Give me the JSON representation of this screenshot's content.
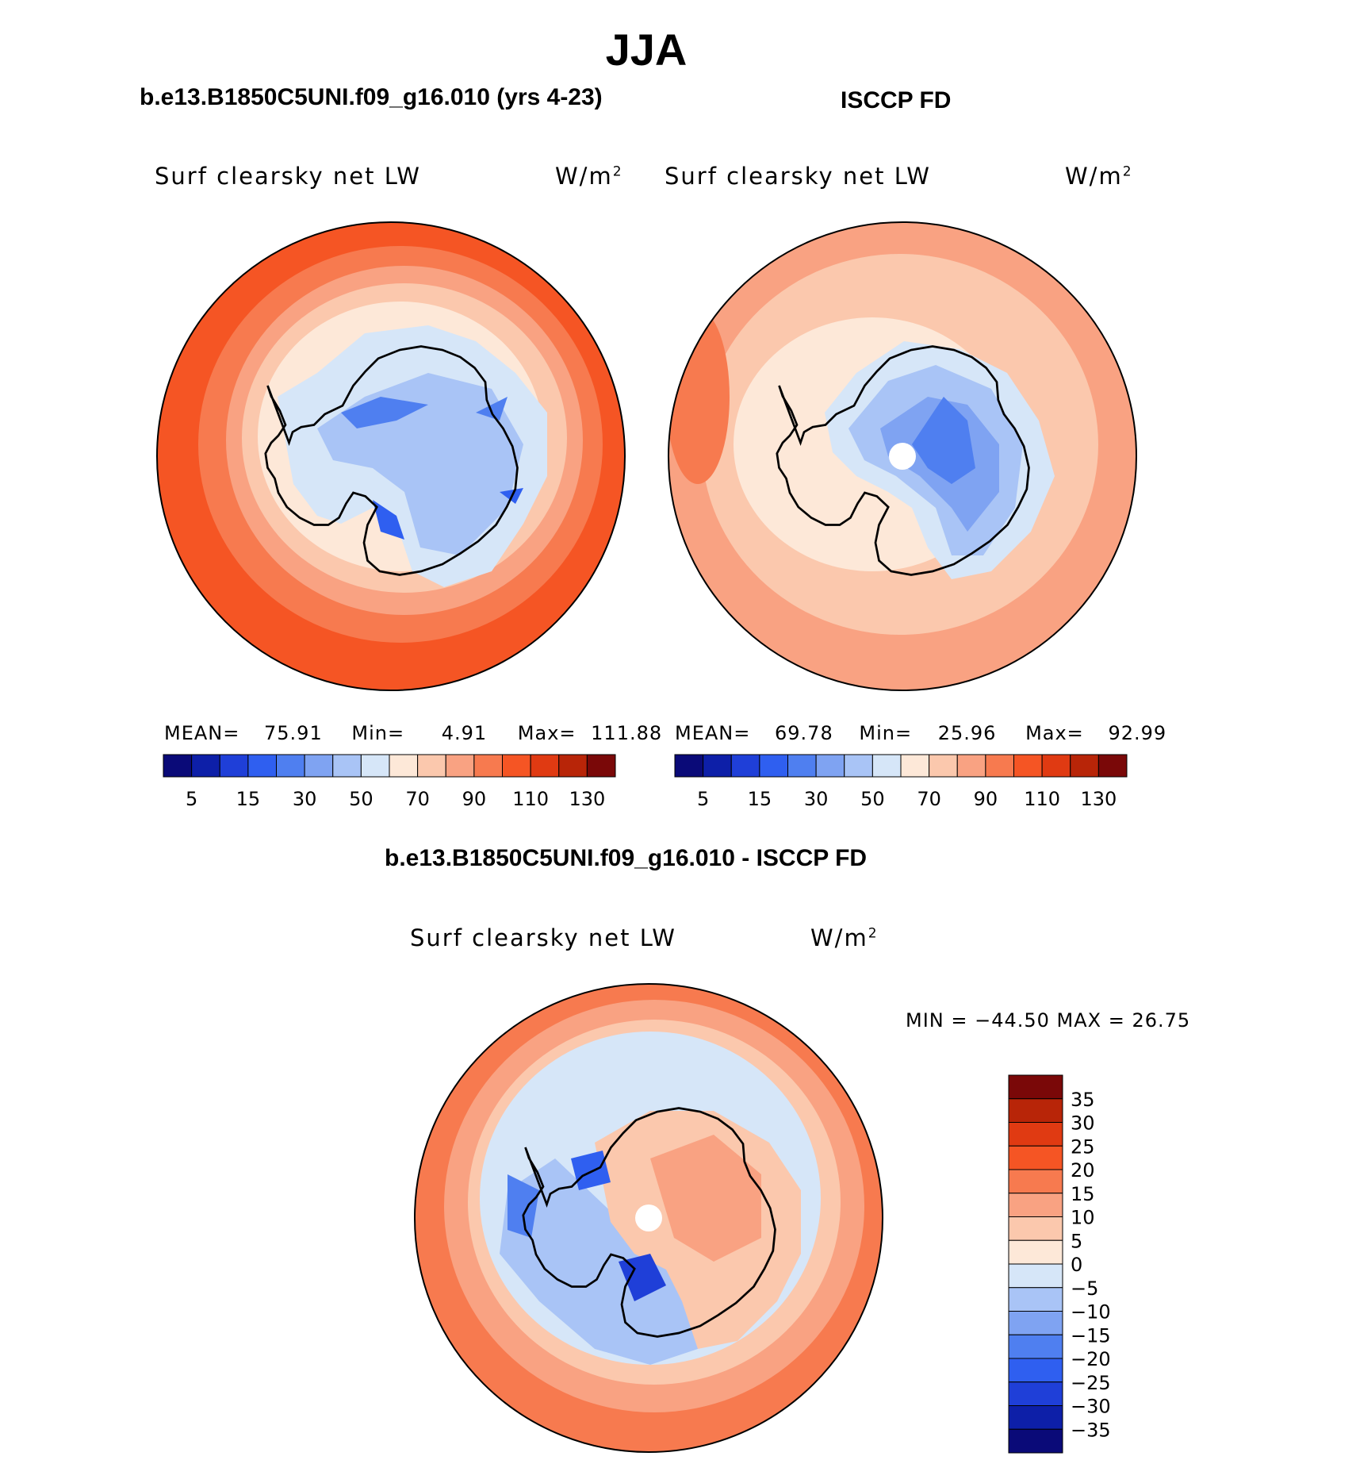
{
  "title": "JJA",
  "panels": [
    {
      "header": "b.e13.B1850C5UNI.f09_g16.010 (yrs 4-23)",
      "variable": "Surf clearsky net LW",
      "units": "W/m",
      "units_sup": "2",
      "stats": {
        "mean_label": "MEAN=",
        "mean": "75.91",
        "min_label": "Min=",
        "min": "4.91",
        "max_label": "Max=",
        "max": "111.88"
      }
    },
    {
      "header": "ISCCP FD",
      "variable": "Surf clearsky net LW",
      "units": "W/m",
      "units_sup": "2",
      "stats": {
        "mean_label": "MEAN=",
        "mean": "69.78",
        "min_label": "Min=",
        "min": "25.96",
        "max_label": "Max=",
        "max": "92.99"
      }
    }
  ],
  "difference": {
    "header": "b.e13.B1850C5UNI.f09_g16.010 - ISCCP FD",
    "variable": "Surf clearsky net LW",
    "units": "W/m",
    "units_sup": "2",
    "minmax": "MIN = −44.50 MAX =   26.75"
  },
  "colorbar_abs": {
    "colors": [
      "#0a0a78",
      "#0d1fa8",
      "#1f3fd8",
      "#2f5ff0",
      "#4f7ff0",
      "#7fa3f2",
      "#a9c4f6",
      "#d6e6f8",
      "#fde8d8",
      "#fbc8ad",
      "#f9a282",
      "#f77a4f",
      "#f55524",
      "#e03a12",
      "#b82508",
      "#7a0808"
    ],
    "labels": [
      "5",
      "15",
      "30",
      "50",
      "70",
      "90",
      "110",
      "130"
    ]
  },
  "colorbar_diff": {
    "colors": [
      "#7a0808",
      "#b82508",
      "#e03a12",
      "#f55524",
      "#f77a4f",
      "#f9a282",
      "#fbc8ad",
      "#fde8d8",
      "#d6e6f8",
      "#a9c4f6",
      "#7fa3f2",
      "#4f7ff0",
      "#2f5ff0",
      "#1f3fd8",
      "#0d1fa8",
      "#0a0a78"
    ],
    "labels": [
      "35",
      "30",
      "25",
      "20",
      "15",
      "10",
      "5",
      "0",
      "−5",
      "−10",
      "−15",
      "−20",
      "−25",
      "−30",
      "−35"
    ]
  }
}
